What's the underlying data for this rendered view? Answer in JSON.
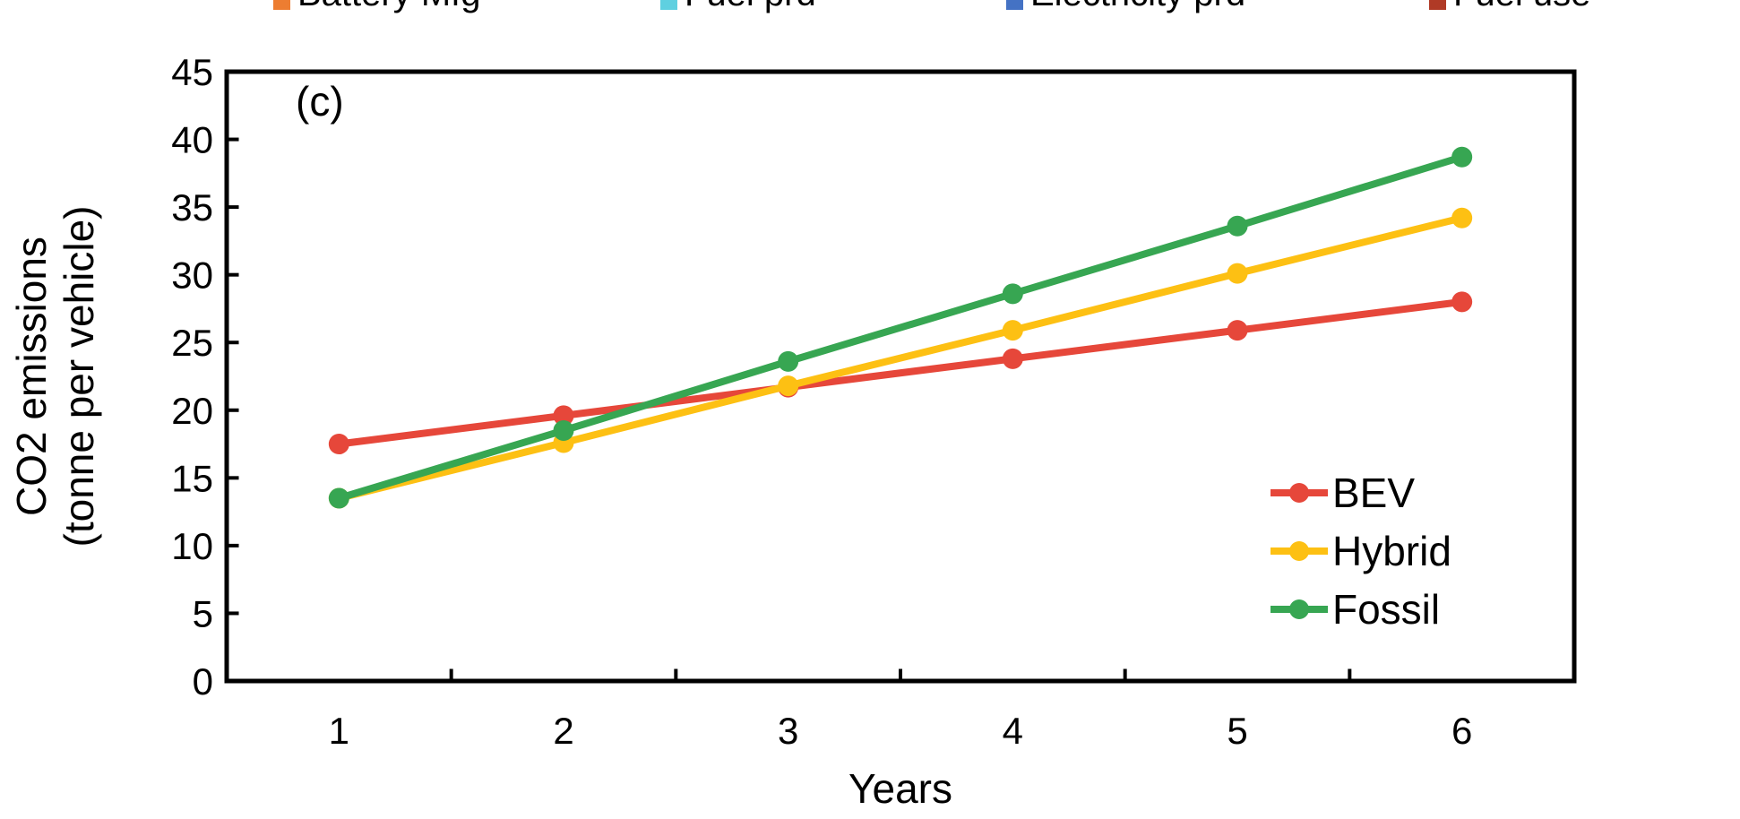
{
  "figure_label": "(c)",
  "top_legend": {
    "items": [
      {
        "label": "Battery Mfg",
        "color": "#ed7d31"
      },
      {
        "label": "Fuel prd",
        "color": "#5fd0e0"
      },
      {
        "label": "Electricity prd",
        "color": "#4472c4"
      },
      {
        "label": "Fuel use",
        "color": "#b03a26"
      }
    ]
  },
  "chart_data": {
    "type": "line",
    "title": "",
    "xlabel": "Years",
    "ylabel_lines": [
      "CO2 emissions",
      "(tonne per vehicle)"
    ],
    "x": [
      1,
      2,
      3,
      4,
      5,
      6
    ],
    "series": [
      {
        "name": "BEV",
        "color": "#e6473a",
        "values": [
          17.5,
          19.6,
          21.7,
          23.8,
          25.9,
          28.0
        ]
      },
      {
        "name": "Hybrid",
        "color": "#fdc013",
        "values": [
          13.5,
          17.6,
          21.8,
          25.9,
          30.1,
          34.2
        ]
      },
      {
        "name": "Fossil",
        "color": "#37a652",
        "values": [
          13.5,
          18.5,
          23.6,
          28.6,
          33.6,
          38.7
        ]
      }
    ],
    "ylim": [
      0,
      45
    ],
    "ytick_step": 5,
    "yticks": [
      0,
      5,
      10,
      15,
      20,
      25,
      30,
      35,
      40,
      45
    ],
    "legend_position": "inside-right",
    "grid": false,
    "axis_color": "#000000"
  }
}
